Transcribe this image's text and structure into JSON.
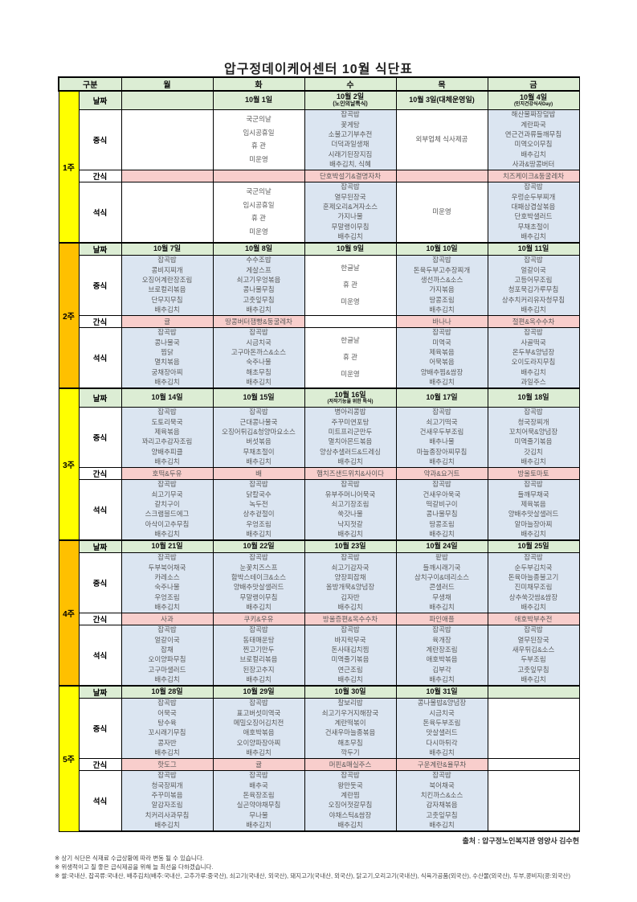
{
  "title": "압구정데이케어센터 10월 식단표",
  "header": {
    "corner": "구분",
    "days": [
      "월",
      "화",
      "수",
      "목",
      "금"
    ]
  },
  "row_labels": {
    "date": "날짜",
    "lunch": "중식",
    "snack": "간식",
    "dinner": "석식"
  },
  "colors": {
    "band_yellow": "#ffff00",
    "band_orange": "#ffc000",
    "green": "#dcedd4",
    "blue": "#dbe5f1",
    "pink": "#f8cecc",
    "red_text": "#ff0000"
  },
  "weeks": [
    {
      "label": "1주",
      "band": "yellow",
      "dates": [
        {
          "text": "",
          "sub": "",
          "red": false
        },
        {
          "text": "10월 1일",
          "sub": "",
          "red": true
        },
        {
          "text": "10월 2일",
          "sub": "(노인의날특식)",
          "red": false
        },
        {
          "text": "10월 3일(대체운영일)",
          "sub": "",
          "red": true
        },
        {
          "text": "10월 4일",
          "sub": "(인지건강식사Day)",
          "red": false
        }
      ],
      "date_tall": true,
      "lunch": [
        {
          "lines": [],
          "red": false,
          "closed": true
        },
        {
          "lines": [
            "국군의날",
            "임시공휴일",
            "휴 관",
            "미운영"
          ],
          "red": true,
          "closed": true
        },
        {
          "lines": [
            "잡곡밥",
            "꽃게탕",
            "소불고기부추전",
            "더덕과일생채",
            "시래기된장지짐",
            "배추김치, 식혜"
          ],
          "red": false,
          "closed": false
        },
        {
          "lines": [
            "외부업체 식사제공"
          ],
          "red": false,
          "closed": true
        },
        {
          "lines": [
            "해산물짜장덮밥",
            "계란파국",
            "연근건과류들깨무침",
            "미역오이무침",
            "배추김치",
            "사과&땅콩버터"
          ],
          "red": false,
          "closed": false
        }
      ],
      "snack": [
        {
          "text": "",
          "closed": false
        },
        {
          "text": "",
          "closed": false
        },
        {
          "text": "단호박설기&결명자차",
          "closed": false
        },
        {
          "text": "",
          "closed": false
        },
        {
          "text": "치즈케이크&둥굴레차",
          "closed": false
        }
      ],
      "dinner": [
        {
          "lines": [],
          "red": false,
          "closed": true
        },
        {
          "lines": [
            "국군의날",
            "임시공휴일",
            "휴 관",
            "미운영"
          ],
          "red": true,
          "closed": true
        },
        {
          "lines": [
            "잡곡밥",
            "열무된장국",
            "훈제오리&겨자소스",
            "가지나물",
            "무말랭이무침",
            "배추김치"
          ],
          "red": false,
          "closed": false
        },
        {
          "lines": [
            "미운영"
          ],
          "red": true,
          "closed": true
        },
        {
          "lines": [
            "잡곡밥",
            "우렁순두부찌개",
            "대패삼겹살볶음",
            "단호박샐러드",
            "무채초절이",
            "배추김치"
          ],
          "red": false,
          "closed": false
        }
      ]
    },
    {
      "label": "2주",
      "band": "orange",
      "dates": [
        {
          "text": "10월 7일",
          "sub": "",
          "red": false
        },
        {
          "text": "10월 8일",
          "sub": "",
          "red": false
        },
        {
          "text": "10월 9일",
          "sub": "",
          "red": true
        },
        {
          "text": "10월 10일",
          "sub": "",
          "red": false
        },
        {
          "text": "10월 11일",
          "sub": "",
          "red": false
        }
      ],
      "date_tall": false,
      "lunch": [
        {
          "lines": [
            "잡곡밥",
            "콩비지찌개",
            "오징어계란장조림",
            "브로컬리볶음",
            "단무지무침",
            "배추김치"
          ],
          "red": false,
          "closed": false
        },
        {
          "lines": [
            "수수조밥",
            "게살스프",
            "쇠고기우엉볶음",
            "콩나물무침",
            "고춧잎무침",
            "배추김치"
          ],
          "red": false,
          "closed": false
        },
        {
          "lines": [
            "한글날",
            "휴 관",
            "미운영"
          ],
          "red": true,
          "closed": true
        },
        {
          "lines": [
            "잡곡밥",
            "돈육두부고추장찌개",
            "생선까스&소스",
            "가지볶음",
            "땅콩조림",
            "배추김치"
          ],
          "red": false,
          "closed": false
        },
        {
          "lines": [
            "잡곡밥",
            "얼갈이국",
            "고등어무조림",
            "청포묵김가루무침",
            "상추치커리유자청무침",
            "배추김치"
          ],
          "red": false,
          "closed": false
        }
      ],
      "snack": [
        {
          "text": "귤",
          "closed": false
        },
        {
          "text": "땅콩버터잼빵&둥굴레차",
          "closed": false
        },
        {
          "text": "",
          "closed": true
        },
        {
          "text": "바나나",
          "closed": false
        },
        {
          "text": "절편&옥수수차",
          "closed": false
        }
      ],
      "dinner": [
        {
          "lines": [
            "잡곡밥",
            "콩나물국",
            "찜닭",
            "멸치볶음",
            "궁채장아찌",
            "배추김치"
          ],
          "red": false,
          "closed": false
        },
        {
          "lines": [
            "잡곡밥",
            "시금치국",
            "고구마돈까스&소스",
            "숙주나물",
            "해초무침",
            "배추김치"
          ],
          "red": false,
          "closed": false
        },
        {
          "lines": [
            "한글날",
            "휴 관",
            "미운영"
          ],
          "red": true,
          "closed": true
        },
        {
          "lines": [
            "잡곡밥",
            "미역국",
            "제육볶음",
            "어묵볶음",
            "양배추찜&쌈장",
            "배추김치"
          ],
          "red": false,
          "closed": false
        },
        {
          "lines": [
            "잡곡밥",
            "사골떡국",
            "온두부&양념장",
            "오이도라지무침",
            "배추김치",
            "과일주스"
          ],
          "red": false,
          "closed": false
        }
      ]
    },
    {
      "label": "3주",
      "band": "yellow",
      "dates": [
        {
          "text": "10월 14일",
          "sub": "",
          "red": false
        },
        {
          "text": "10월 15일",
          "sub": "",
          "red": false
        },
        {
          "text": "10월 16일",
          "sub": "(저작기능을 위한 특식)",
          "red": false
        },
        {
          "text": "10월 17일",
          "sub": "",
          "red": false
        },
        {
          "text": "10월 18일",
          "sub": "",
          "red": false
        }
      ],
      "date_tall": true,
      "lunch": [
        {
          "lines": [
            "잡곡밥",
            "도토리묵국",
            "제육볶음",
            "꽈리고추감자조림",
            "양배추피클",
            "배추김치"
          ],
          "red": false,
          "closed": false
        },
        {
          "lines": [
            "잡곡밥",
            "근대콩나물국",
            "오징어튀김&청양마요소스",
            "버섯볶음",
            "무채초절이",
            "배추김치"
          ],
          "red": false,
          "closed": false
        },
        {
          "lines": [
            "병아리콩밥",
            "주꾸미연포탕",
            "미트프리군만두",
            "멸치아몬드볶음",
            "양상추샐러드&드레싱",
            "배추김치"
          ],
          "red": false,
          "closed": false
        },
        {
          "lines": [
            "잡곡밥",
            "쇠고기떡국",
            "건새우두부조림",
            "배추나물",
            "마늘종장아찌무침",
            "배추김치"
          ],
          "red": false,
          "closed": false
        },
        {
          "lines": [
            "잡곡밥",
            "청국장찌개",
            "꼬치어묵&양념장",
            "미역줄기볶음",
            "갓김치",
            "배추김치"
          ],
          "red": false,
          "closed": false
        }
      ],
      "snack": [
        {
          "text": "호떡&두유",
          "closed": false
        },
        {
          "text": "배",
          "closed": false
        },
        {
          "text": "햄치즈샌드위치&사이다",
          "closed": false
        },
        {
          "text": "약과&요거트",
          "closed": false
        },
        {
          "text": "방울토마토",
          "closed": false
        }
      ],
      "dinner": [
        {
          "lines": [
            "잡곡밥",
            "쇠고기무국",
            "갈치구이",
            "스크램블드에그",
            "아삭이고추무침",
            "배추김치"
          ],
          "red": false,
          "closed": false
        },
        {
          "lines": [
            "잡곡밥",
            "닭칼국수",
            "녹두전",
            "상추겉절이",
            "우엉조림",
            "배추김치"
          ],
          "red": false,
          "closed": false
        },
        {
          "lines": [
            "잡곡밥",
            "유부주머니어묵국",
            "쇠고기장조림",
            "쑥갓나물",
            "낙지젓갈",
            "배추김치"
          ],
          "red": false,
          "closed": false
        },
        {
          "lines": [
            "잡곡밥",
            "건새우아욱국",
            "떡갈비구이",
            "콩나물무침",
            "땅콩조림",
            "배추김치"
          ],
          "red": false,
          "closed": false
        },
        {
          "lines": [
            "잡곡밥",
            "들깨무채국",
            "제육볶음",
            "양배추맛살샐러드",
            "알마늘장아찌",
            "배추김치"
          ],
          "red": false,
          "closed": false
        }
      ]
    },
    {
      "label": "4주",
      "band": "orange",
      "dates": [
        {
          "text": "10월 21일",
          "sub": "",
          "red": false
        },
        {
          "text": "10월 22일",
          "sub": "",
          "red": false
        },
        {
          "text": "10월 23일",
          "sub": "",
          "red": false
        },
        {
          "text": "10월 24일",
          "sub": "",
          "red": false
        },
        {
          "text": "10월 25일",
          "sub": "",
          "red": false
        }
      ],
      "date_tall": false,
      "lunch": [
        {
          "lines": [
            "잡곡밥",
            "두부북어채국",
            "카레소스",
            "숙주나물",
            "우엉조림",
            "배추김치"
          ],
          "red": false,
          "closed": false
        },
        {
          "lines": [
            "잡곡밥",
            "눈꽃치즈스프",
            "함박스테이크&소스",
            "양배추맛살샐러드",
            "무말랭이무침",
            "배추김치"
          ],
          "red": false,
          "closed": false
        },
        {
          "lines": [
            "잡곡밥",
            "쇠고기감자국",
            "양장피잡채",
            "올방개묵&양념장",
            "김자반",
            "배추김치"
          ],
          "red": false,
          "closed": false
        },
        {
          "lines": [
            "팥밥",
            "들깨시래기국",
            "삼치구이&데리소스",
            "콘샐러드",
            "무생채",
            "배추김치"
          ],
          "red": false,
          "closed": false
        },
        {
          "lines": [
            "잡곡밥",
            "순두부김치국",
            "돈육마늘종불고기",
            "진미채무조림",
            "상추쑥갓쌈&쌈장",
            "배추김치"
          ],
          "red": false,
          "closed": false
        }
      ],
      "snack": [
        {
          "text": "사과",
          "closed": false
        },
        {
          "text": "쿠키&우유",
          "closed": false
        },
        {
          "text": "방울증편&옥수수차",
          "closed": false
        },
        {
          "text": "파인애플",
          "closed": false
        },
        {
          "text": "애호박부추전",
          "closed": false
        }
      ],
      "dinner": [
        {
          "lines": [
            "잡곡밥",
            "얼갈이국",
            "잡채",
            "오이양파무침",
            "고구마샐러드",
            "배추김치"
          ],
          "red": false,
          "closed": false
        },
        {
          "lines": [
            "잡곡밥",
            "동태매운탕",
            "찐고기만두",
            "브로컬리볶음",
            "된장고추지",
            "배추김치"
          ],
          "red": false,
          "closed": false
        },
        {
          "lines": [
            "잡곡밥",
            "바지락무국",
            "돈사태김치찜",
            "미역줄기볶음",
            "연근조림",
            "배추김치"
          ],
          "red": false,
          "closed": false
        },
        {
          "lines": [
            "잡곡밥",
            "육개장",
            "계란장조림",
            "애호박볶음",
            "김부각",
            "배추김치"
          ],
          "red": false,
          "closed": false
        },
        {
          "lines": [
            "잡곡밥",
            "열무된장국",
            "새우튀김&소스",
            "두부조림",
            "고춧잎무침",
            "배추김치"
          ],
          "red": false,
          "closed": false
        }
      ]
    },
    {
      "label": "5주",
      "band": "yellow",
      "dates": [
        {
          "text": "10월 28일",
          "sub": "",
          "red": false
        },
        {
          "text": "10월 29일",
          "sub": "",
          "red": false
        },
        {
          "text": "10월 30일",
          "sub": "",
          "red": false
        },
        {
          "text": "10월 31일",
          "sub": "",
          "red": false
        },
        {
          "text": "",
          "sub": "",
          "red": false
        }
      ],
      "date_tall": false,
      "lunch": [
        {
          "lines": [
            "잡곡밥",
            "어묵국",
            "탕수육",
            "꼬시래기무침",
            "콩자반",
            "배추김치"
          ],
          "red": false,
          "closed": false
        },
        {
          "lines": [
            "잡곡밥",
            "표고버섯미역국",
            "메밀오징어김치전",
            "애호박볶음",
            "오이양파장아찌",
            "배추김치"
          ],
          "red": false,
          "closed": false
        },
        {
          "lines": [
            "찰보리밥",
            "쇠고기우거지해장국",
            "계란떡볶이",
            "건새우마늘종볶음",
            "해초무침",
            "깍두기"
          ],
          "red": false,
          "closed": false
        },
        {
          "lines": [
            "콩나물밥&양념장",
            "시금치국",
            "돈육두부조림",
            "맛살샐러드",
            "다시마튀각",
            "배추김치"
          ],
          "red": false,
          "closed": false
        },
        {
          "lines": [],
          "red": false,
          "closed": true
        }
      ],
      "snack": [
        {
          "text": "핫도그",
          "closed": false
        },
        {
          "text": "귤",
          "closed": false
        },
        {
          "text": "머핀&매실주스",
          "closed": false
        },
        {
          "text": "구운계란&율무차",
          "closed": false
        },
        {
          "text": "",
          "closed": true
        }
      ],
      "dinner": [
        {
          "lines": [
            "잡곡밥",
            "청국장찌개",
            "주꾸미볶음",
            "알감자조림",
            "치커리사과무침",
            "배추김치"
          ],
          "red": false,
          "closed": false
        },
        {
          "lines": [
            "잡곡밥",
            "배추국",
            "돈육장조림",
            "실곤약야채무침",
            "무나물",
            "배추김치"
          ],
          "red": false,
          "closed": false
        },
        {
          "lines": [
            "잡곡밥",
            "왕만둣국",
            "계란찜",
            "오징어젓갈무침",
            "야채스틱&쌈장",
            "배추김치"
          ],
          "red": false,
          "closed": false
        },
        {
          "lines": [
            "잡곡밥",
            "북어채국",
            "치킨까스&소스",
            "감자채볶음",
            "고춧잎무침",
            "배추김치"
          ],
          "red": false,
          "closed": false
        },
        {
          "lines": [],
          "red": false,
          "closed": true
        }
      ]
    }
  ],
  "source": "출처 : 압구정노인복지관 영양사 김수현",
  "notes": [
    "※ 상기 식단은 식재료 수급상황에 따라 변동 될 수 있습니다.",
    "※ 위생적이고 질 좋은 급식제공을 위해 늘 최선을 다하겠습니다.",
    "※ 쌀:국내산, 잡곡류:국내산, 배추김치(배추:국내산, 고추가루:중국산), 쇠고기(국내산, 외국산), 돼지고기(국내산, 외국산), 닭고기,오리고기(국내산), 식육가공품(외국산), 수산물(외국산), 두부,콩비지(콩:외국산)"
  ]
}
